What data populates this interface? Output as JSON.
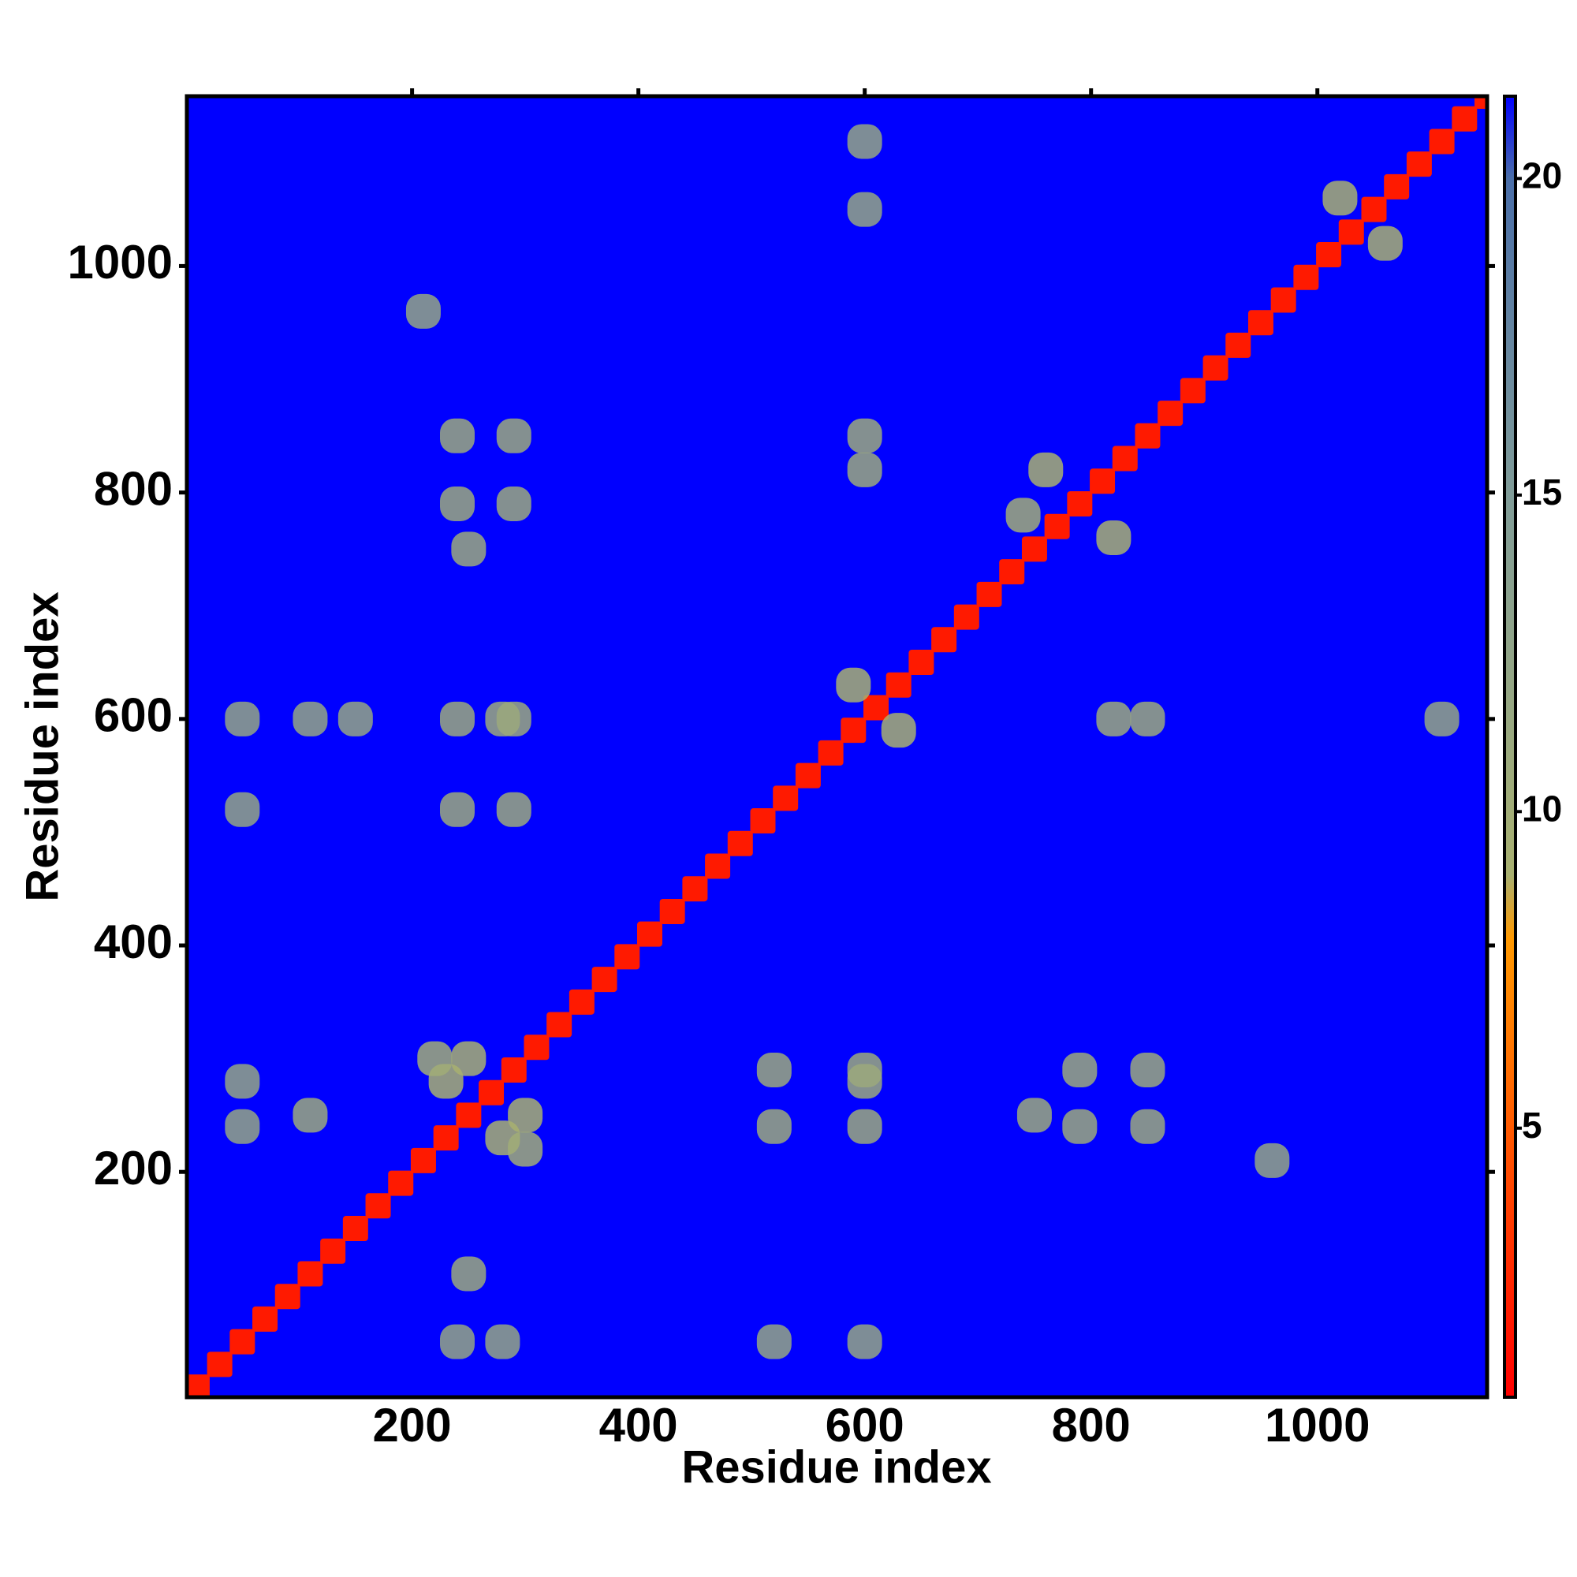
{
  "chart_data": {
    "type": "heatmap",
    "x_label": "Residue index",
    "y_label": "Residue index",
    "xlim": [
      1,
      1150
    ],
    "ylim": [
      1,
      1150
    ],
    "xticks": [
      200,
      400,
      600,
      800,
      1000
    ],
    "yticks": [
      200,
      400,
      600,
      800,
      1000
    ],
    "zlim": [
      0.75,
      21.3
    ],
    "zticks": [
      5,
      10,
      15,
      20
    ],
    "colorscale": [
      {
        "value": 0.75,
        "color": "#ff0000"
      },
      {
        "value": 8,
        "color": "#ff9900"
      },
      {
        "value": 9,
        "color": "#a8b070"
      },
      {
        "value": 15,
        "color": "#809c98"
      },
      {
        "value": 20,
        "color": "#4a6ea8"
      },
      {
        "value": 21.3,
        "color": "#0000ff"
      }
    ],
    "x": [
      10,
      30,
      50,
      70,
      90,
      110,
      130,
      150,
      170,
      190,
      210,
      230,
      250,
      270,
      290,
      310,
      330,
      350,
      370,
      390,
      410,
      430,
      450,
      470,
      490,
      510,
      530,
      550,
      570,
      590,
      610,
      630,
      650,
      670,
      690,
      710,
      730,
      750,
      770,
      790,
      810,
      830,
      850,
      870,
      890,
      910,
      930,
      950,
      970,
      990,
      1010,
      1030,
      1050,
      1070,
      1090,
      1110,
      1130,
      1150,
      230,
      280,
      250,
      300,
      220,
      300,
      590,
      630,
      760,
      820,
      740,
      1020,
      1060,
      240,
      290,
      240,
      290,
      50,
      50,
      110,
      150,
      600,
      600,
      520,
      520,
      600,
      520,
      240,
      290,
      240,
      290,
      250,
      850,
      850,
      790,
      790,
      750,
      600,
      600,
      850,
      820,
      600,
      600,
      1110,
      250,
      110,
      50,
      240,
      50,
      280,
      600,
      280,
      960,
      210
    ],
    "y": [
      10,
      30,
      50,
      70,
      90,
      110,
      130,
      150,
      170,
      190,
      210,
      230,
      250,
      270,
      290,
      310,
      330,
      350,
      370,
      390,
      410,
      430,
      450,
      470,
      490,
      510,
      530,
      550,
      570,
      590,
      610,
      630,
      650,
      670,
      690,
      710,
      730,
      750,
      770,
      790,
      810,
      830,
      850,
      870,
      890,
      910,
      930,
      950,
      970,
      990,
      1010,
      1030,
      1050,
      1070,
      1090,
      1110,
      1130,
      1150,
      280,
      230,
      300,
      250,
      300,
      220,
      630,
      590,
      820,
      760,
      780,
      1060,
      1020,
      600,
      600,
      520,
      520,
      600,
      520,
      600,
      600,
      240,
      290,
      240,
      290,
      50,
      50,
      850,
      850,
      790,
      790,
      750,
      240,
      290,
      240,
      290,
      250,
      850,
      820,
      600,
      600,
      1110,
      1050,
      600,
      110,
      250,
      240,
      50,
      280,
      50,
      280,
      600,
      210,
      960
    ],
    "values": [
      2,
      2,
      2,
      2,
      2,
      2,
      2,
      2,
      2,
      2,
      2,
      2,
      2,
      2,
      2,
      2,
      2,
      2,
      2,
      2,
      2,
      2,
      2,
      2,
      2,
      2,
      2,
      2,
      2,
      2,
      2,
      2,
      2,
      2,
      2,
      2,
      2,
      2,
      2,
      2,
      2,
      2,
      2,
      2,
      2,
      2,
      2,
      2,
      2,
      2,
      2,
      2,
      2,
      2,
      2,
      2,
      2,
      2,
      9,
      9,
      9,
      9,
      10,
      10,
      9,
      9,
      9,
      9,
      10,
      9,
      9,
      11,
      11,
      11,
      11,
      12,
      12,
      12,
      12,
      11,
      11,
      11,
      11,
      12,
      12,
      11,
      11,
      11,
      11,
      11,
      11,
      11,
      11,
      11,
      11,
      11,
      11,
      11,
      11,
      12,
      12,
      12,
      11,
      11,
      12,
      12,
      12,
      12,
      11,
      11,
      12,
      12
    ]
  }
}
